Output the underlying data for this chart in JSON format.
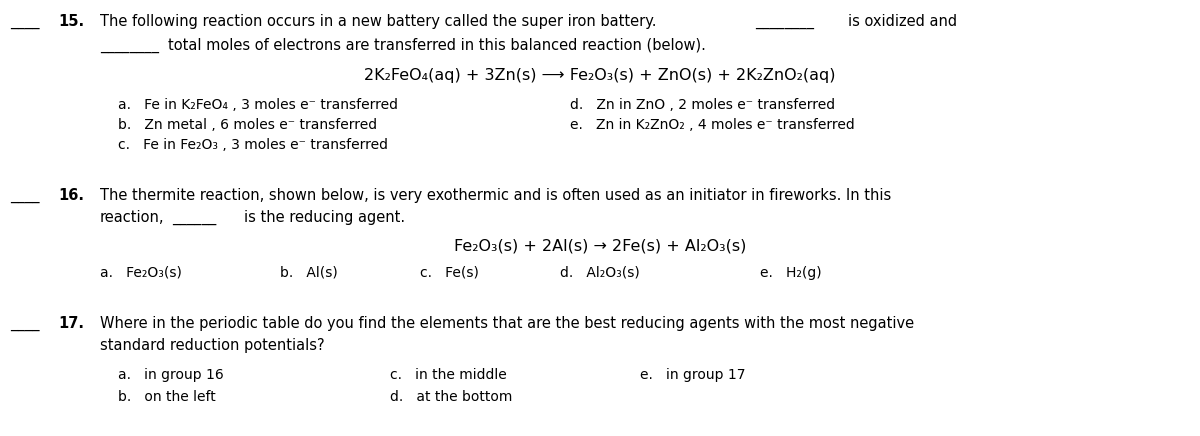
{
  "bg_color": "#ffffff",
  "text_color": "#000000",
  "figsize": [
    12.0,
    4.36
  ],
  "dpi": 100,
  "q15_number": "15.",
  "q15_blank_left": "____",
  "q15_line1_main": "The following reaction occurs in a new battery called the super iron battery.",
  "q15_line1_blank": "________",
  "q15_line1_end": "is oxidized and",
  "q15_line2_blank": "________",
  "q15_line2_end": "total moles of electrons are transferred in this balanced reaction (below).",
  "q15_equation": "2K₂FeO₄(aq) + 3Zn(s) ⟶ Fe₂O₃(s) + ZnO(s) + 2K₂ZnO₂(aq)",
  "q15_a": "a.   Fe in K₂FeO₄ , 3 moles e⁻ transferred",
  "q15_b": "b.   Zn metal , 6 moles e⁻ transferred",
  "q15_c": "c.   Fe in Fe₂O₃ , 3 moles e⁻ transferred",
  "q15_d": "d.   Zn in ZnO , 2 moles e⁻ transferred",
  "q15_e": "e.   Zn in K₂ZnO₂ , 4 moles e⁻ transferred",
  "q16_number": "16.",
  "q16_blank_left": "____",
  "q16_line1": "The thermite reaction, shown below, is very exothermic and is often used as an initiator in fireworks. In this",
  "q16_line2_start": "reaction,",
  "q16_line2_blank": "______",
  "q16_line2_end": "is the reducing agent.",
  "q16_equation": "Fe₂O₃(s) + 2Al(s) → 2Fe(s) + Al₂O₃(s)",
  "q16_a": "a.   Fe₂O₃(s)",
  "q16_b": "b.   Al(s)",
  "q16_c": "c.   Fe(s)",
  "q16_d": "d.   Al₂O₃(s)",
  "q16_e": "e.   H₂(g)",
  "q17_number": "17.",
  "q17_blank_left": "____",
  "q17_line1": "Where in the periodic table do you find the elements that are the best reducing agents with the most negative",
  "q17_line2": "standard reduction potentials?",
  "q17_a": "a.   in group 16",
  "q17_b": "b.   on the left",
  "q17_c": "c.   in the middle",
  "q17_d": "d.   at the bottom",
  "q17_e": "e.   in group 17",
  "fs": 10.5,
  "fs_eq": 11.5,
  "fs_ans": 10.0
}
